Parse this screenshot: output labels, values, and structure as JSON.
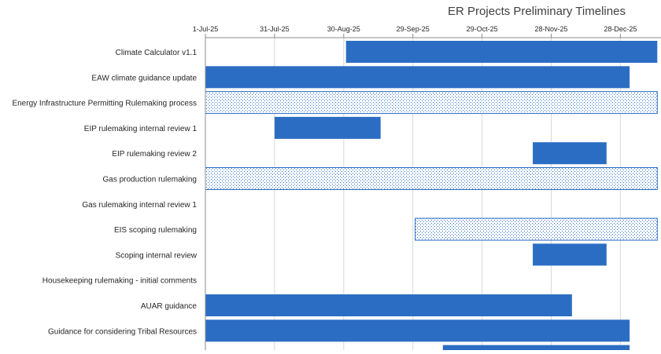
{
  "chart_data": {
    "type": "bar",
    "orientation": "horizontal",
    "title": "ER Projects Preliminary Timelines",
    "x_tick_labels": [
      "1-Jul-25",
      "31-Jul-25",
      "30-Aug-25",
      "29-Sep-25",
      "29-Oct-25",
      "28-Nov-25",
      "28-Dec-25"
    ],
    "x_ticks": [
      "2025-07-01",
      "2025-07-31",
      "2025-08-30",
      "2025-09-29",
      "2025-10-29",
      "2025-11-28",
      "2025-12-28"
    ],
    "xlim": [
      "2025-07-01",
      "2026-01-13"
    ],
    "grid": true,
    "colors": {
      "bar_fill": "#2c6dc4",
      "pattern_dot": "#2c6dc4",
      "pattern_bg": "#ffffff",
      "grid": "#d9d9d9",
      "axis": "#8c8c8c",
      "title": "#404040",
      "label": "#262626"
    },
    "tasks": [
      {
        "label": "Climate Calculator v1.1",
        "start": "2025-08-31",
        "end": "2026-01-13",
        "style": "solid"
      },
      {
        "label": "EAW climate guidance update",
        "start": "2025-07-01",
        "end": "2026-01-01",
        "style": "solid"
      },
      {
        "label": "Energy Infrastructure Permitting Rulemaking process",
        "start": "2025-07-01",
        "end": "2026-01-13",
        "style": "pattern"
      },
      {
        "label": "EIP rulemaking internal review 1",
        "start": "2025-07-31",
        "end": "2025-09-15",
        "style": "solid"
      },
      {
        "label": "EIP rulemaking review 2",
        "start": "2025-11-20",
        "end": "2025-12-22",
        "style": "solid"
      },
      {
        "label": "Gas production rulemaking",
        "start": "2025-07-01",
        "end": "2026-01-13",
        "style": "pattern"
      },
      {
        "label": "Gas rulemaking internal review 1",
        "start": null,
        "end": null,
        "style": "none"
      },
      {
        "label": "EIS scoping rulemaking",
        "start": "2025-09-30",
        "end": "2026-01-13",
        "style": "pattern"
      },
      {
        "label": "Scoping internal review",
        "start": "2025-11-20",
        "end": "2025-12-22",
        "style": "solid"
      },
      {
        "label": "Housekeeping rulemaking - initial comments",
        "start": null,
        "end": null,
        "style": "none"
      },
      {
        "label": "AUAR guidance",
        "start": "2025-07-01",
        "end": "2025-12-07",
        "style": "solid"
      },
      {
        "label": "Guidance for considering Tribal Resources",
        "start": "2025-07-01",
        "end": "2026-01-01",
        "style": "solid"
      },
      {
        "label": "",
        "start": "2025-10-12",
        "end": "2026-01-01",
        "style": "solid"
      }
    ]
  }
}
